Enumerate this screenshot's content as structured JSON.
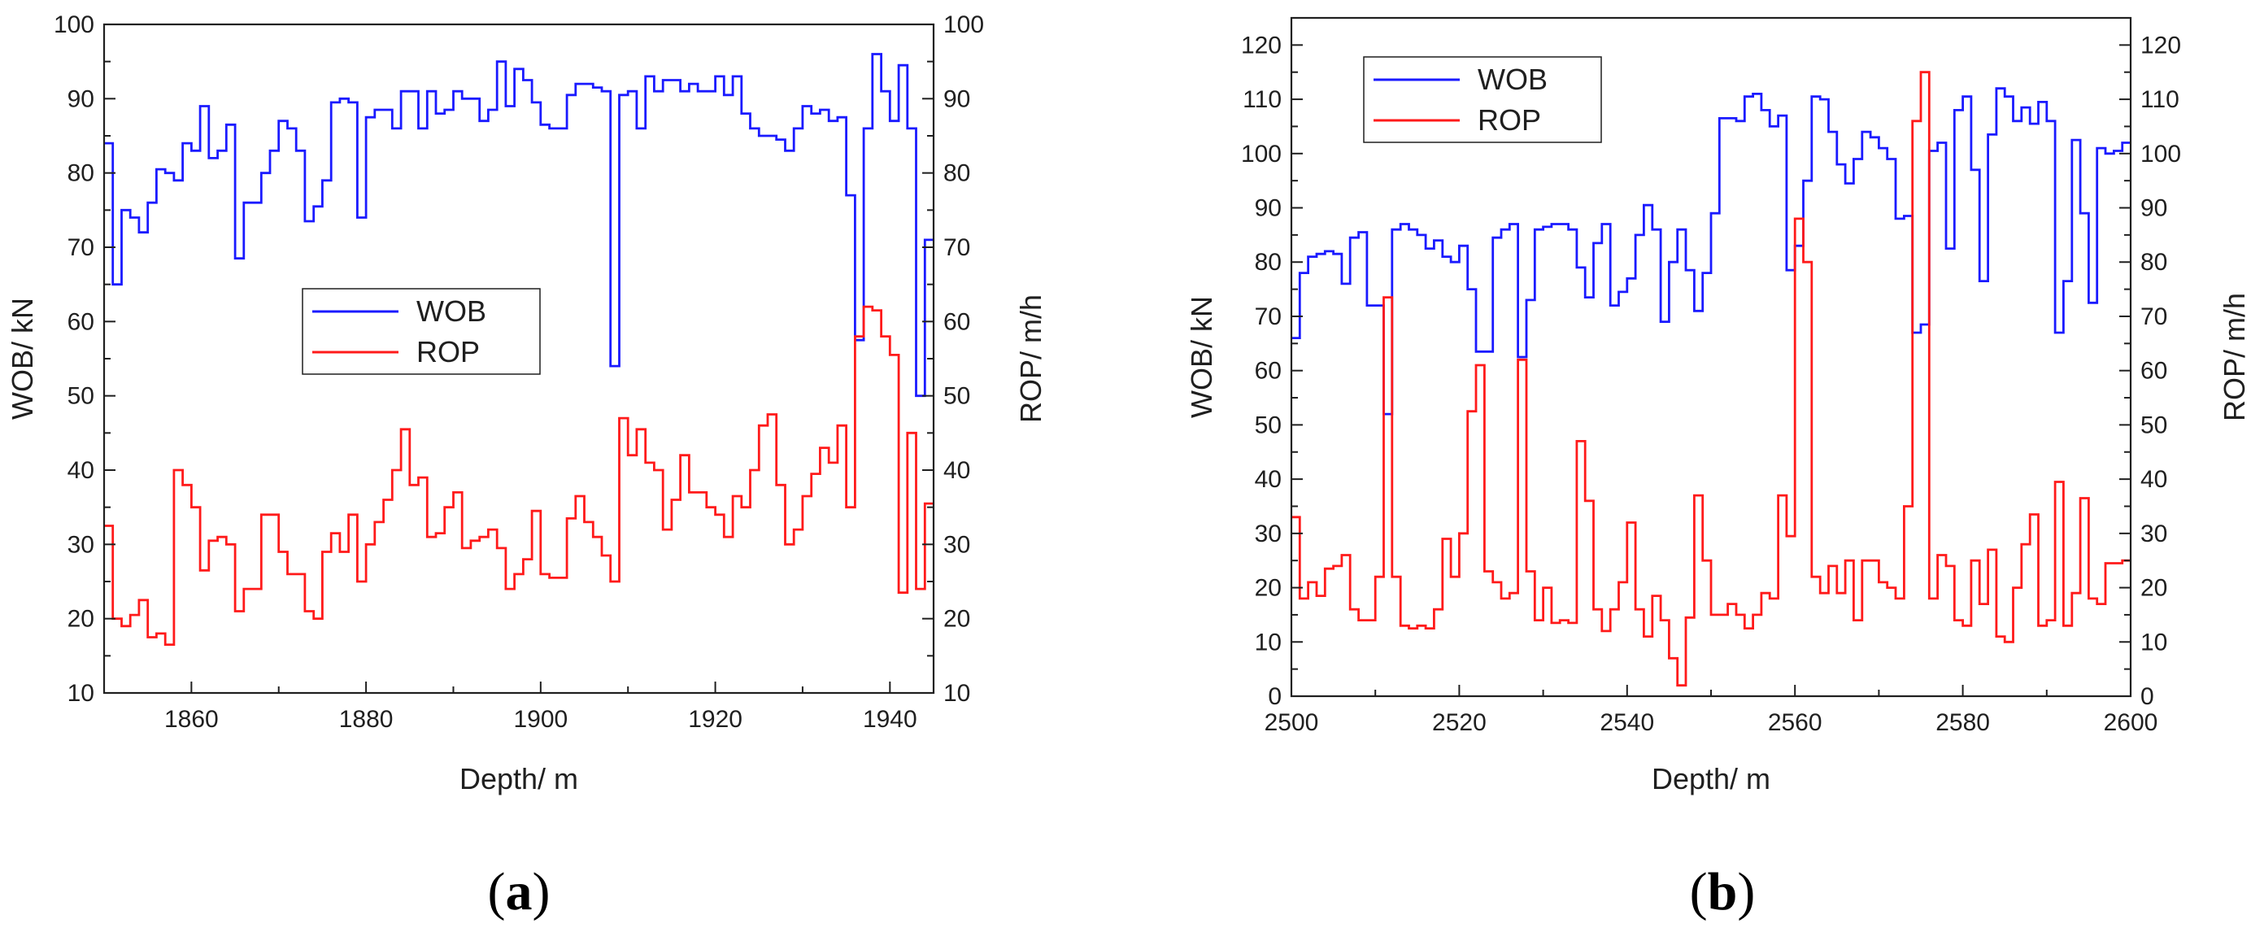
{
  "colors": {
    "wob": "#1a1aff",
    "rop": "#ff1a1a",
    "axis": "#1f1f1f"
  },
  "chart_data": [
    {
      "type": "line",
      "step": true,
      "panel_label_open": "(",
      "panel_label": "a",
      "panel_label_close": ")",
      "xlabel": "Depth/ m",
      "ylabel": "WOB/ kN",
      "y2label": "ROP/ m/h",
      "xlim": [
        1850,
        1945
      ],
      "ylim": [
        10,
        100
      ],
      "y2lim": [
        10,
        100
      ],
      "xticks": [
        1860,
        1880,
        1900,
        1920,
        1940
      ],
      "yticks": [
        10,
        20,
        30,
        40,
        50,
        60,
        70,
        80,
        90,
        100
      ],
      "legend_position": "center-left",
      "series": [
        {
          "name": "WOB",
          "axis": "left",
          "x": [
            1850,
            1851,
            1852,
            1853,
            1854,
            1855,
            1856,
            1857,
            1858,
            1859,
            1860,
            1861,
            1862,
            1863,
            1864,
            1865,
            1866,
            1867,
            1868,
            1869,
            1870,
            1871,
            1872,
            1873,
            1874,
            1875,
            1876,
            1877,
            1878,
            1879,
            1880,
            1881,
            1882,
            1883,
            1884,
            1885,
            1886,
            1887,
            1888,
            1889,
            1890,
            1891,
            1892,
            1893,
            1894,
            1895,
            1896,
            1897,
            1898,
            1899,
            1900,
            1901,
            1902,
            1903,
            1904,
            1905,
            1906,
            1907,
            1908,
            1909,
            1910,
            1911,
            1912,
            1913,
            1914,
            1915,
            1916,
            1917,
            1918,
            1919,
            1920,
            1921,
            1922,
            1923,
            1924,
            1925,
            1926,
            1927,
            1928,
            1929,
            1930,
            1931,
            1932,
            1933,
            1934,
            1935,
            1936,
            1937,
            1938,
            1939,
            1940,
            1941,
            1942,
            1943,
            1944,
            1945
          ],
          "y": [
            84,
            65,
            75,
            74,
            72,
            76,
            80.5,
            80,
            79,
            84,
            83,
            89,
            82,
            83,
            86.5,
            68.5,
            76,
            76,
            80,
            83,
            87,
            86,
            83,
            73.5,
            75.5,
            79,
            89.5,
            90,
            89.5,
            74,
            87.5,
            88.5,
            88.5,
            86,
            91,
            91,
            86,
            91,
            88,
            88.5,
            91,
            90,
            90,
            87,
            88.5,
            95,
            89,
            94,
            92.5,
            89.5,
            86.5,
            86,
            86,
            90.5,
            92,
            92,
            91.5,
            91,
            54,
            90.5,
            91,
            86,
            93,
            91,
            92.5,
            92.5,
            91,
            92,
            91,
            91,
            93,
            90.5,
            93,
            88,
            86,
            85,
            85,
            84.5,
            83,
            86,
            89,
            88,
            88.5,
            87,
            87.5,
            77,
            57.5,
            86,
            96,
            91,
            87,
            94.5,
            86,
            50,
            71,
            71
          ]
        },
        {
          "name": "ROP",
          "axis": "right",
          "x": [
            1850,
            1851,
            1852,
            1853,
            1854,
            1855,
            1856,
            1857,
            1858,
            1859,
            1860,
            1861,
            1862,
            1863,
            1864,
            1865,
            1866,
            1867,
            1868,
            1869,
            1870,
            1871,
            1872,
            1873,
            1874,
            1875,
            1876,
            1877,
            1878,
            1879,
            1880,
            1881,
            1882,
            1883,
            1884,
            1885,
            1886,
            1887,
            1888,
            1889,
            1890,
            1891,
            1892,
            1893,
            1894,
            1895,
            1896,
            1897,
            1898,
            1899,
            1900,
            1901,
            1902,
            1903,
            1904,
            1905,
            1906,
            1907,
            1908,
            1909,
            1910,
            1911,
            1912,
            1913,
            1914,
            1915,
            1916,
            1917,
            1918,
            1919,
            1920,
            1921,
            1922,
            1923,
            1924,
            1925,
            1926,
            1927,
            1928,
            1929,
            1930,
            1931,
            1932,
            1933,
            1934,
            1935,
            1936,
            1937,
            1938,
            1939,
            1940,
            1941,
            1942,
            1943,
            1944,
            1945
          ],
          "y": [
            32.5,
            20,
            19,
            20.5,
            22.5,
            17.5,
            18,
            16.5,
            40,
            38,
            35,
            26.5,
            30.5,
            31,
            30,
            21,
            24,
            24,
            34,
            34,
            29,
            26,
            26,
            21,
            20,
            29,
            31.5,
            29,
            34,
            25,
            30,
            33,
            36,
            40,
            45.5,
            38,
            39,
            31,
            31.5,
            35,
            37,
            29.5,
            30.5,
            31,
            32,
            29.5,
            24,
            26,
            28,
            34.5,
            26,
            25.5,
            25.5,
            33.5,
            36.5,
            33,
            31,
            28.5,
            25,
            47,
            42,
            45.5,
            41,
            40,
            32,
            36,
            42,
            37,
            37,
            35,
            34,
            31,
            36.5,
            35,
            40,
            46,
            47.5,
            38,
            30,
            32,
            36.5,
            39.5,
            43,
            41,
            46,
            35,
            58,
            62,
            61.5,
            58,
            55.5,
            23.5,
            45,
            24,
            35.5,
            35.5
          ]
        }
      ]
    },
    {
      "type": "line",
      "step": true,
      "panel_label_open": "(",
      "panel_label": "b",
      "panel_label_close": ")",
      "xlabel": "Depth/ m",
      "ylabel": "WOB/ kN",
      "y2label": "ROP/ m/h",
      "xlim": [
        2500,
        2600
      ],
      "ylim": [
        0,
        125
      ],
      "y2lim": [
        0,
        125
      ],
      "xticks": [
        2500,
        2520,
        2540,
        2560,
        2580,
        2600
      ],
      "yticks": [
        0,
        10,
        20,
        30,
        40,
        50,
        60,
        70,
        80,
        90,
        100,
        110,
        120
      ],
      "legend_position": "top-left",
      "series": [
        {
          "name": "WOB",
          "axis": "left",
          "x": [
            2500,
            2501,
            2502,
            2503,
            2504,
            2505,
            2506,
            2507,
            2508,
            2509,
            2510,
            2511,
            2512,
            2513,
            2514,
            2515,
            2516,
            2517,
            2518,
            2519,
            2520,
            2521,
            2522,
            2523,
            2524,
            2525,
            2526,
            2527,
            2528,
            2529,
            2530,
            2531,
            2532,
            2533,
            2534,
            2535,
            2536,
            2537,
            2538,
            2539,
            2540,
            2541,
            2542,
            2543,
            2544,
            2545,
            2546,
            2547,
            2548,
            2549,
            2550,
            2551,
            2552,
            2553,
            2554,
            2555,
            2556,
            2557,
            2558,
            2559,
            2560,
            2561,
            2562,
            2563,
            2564,
            2565,
            2566,
            2567,
            2568,
            2569,
            2570,
            2571,
            2572,
            2573,
            2574,
            2575,
            2576,
            2577,
            2578,
            2579,
            2580,
            2581,
            2582,
            2583,
            2584,
            2585,
            2586,
            2587,
            2588,
            2589,
            2590,
            2591,
            2592,
            2593,
            2594,
            2595,
            2596,
            2597,
            2598,
            2599,
            2600
          ],
          "y": [
            66,
            78,
            81,
            81.5,
            82,
            81.5,
            76,
            84.5,
            85.5,
            72,
            72,
            52,
            86,
            87,
            86,
            85,
            82.5,
            84,
            81,
            80,
            83,
            75,
            63.5,
            63.5,
            84.5,
            86,
            87,
            62.5,
            73,
            86,
            86.5,
            87,
            87,
            86,
            79,
            73.5,
            83.5,
            87,
            72,
            74.5,
            77,
            85,
            90.5,
            86,
            69,
            80,
            86,
            78.5,
            71,
            78,
            89,
            106.5,
            106.5,
            106,
            110.5,
            111,
            108,
            105,
            107,
            78.5,
            83,
            95,
            110.5,
            110,
            104,
            98,
            94.5,
            99,
            104,
            103,
            101,
            99,
            88,
            88.5,
            67,
            68.5,
            100.5,
            102,
            82.5,
            108,
            110.5,
            97,
            76.5,
            103.5,
            112,
            110.5,
            106,
            108.5,
            105.5,
            109.5,
            106,
            67,
            76.5,
            102.5,
            89,
            72.5,
            101,
            100,
            100.5,
            102,
            102
          ]
        },
        {
          "name": "ROP",
          "axis": "right",
          "x": [
            2500,
            2501,
            2502,
            2503,
            2504,
            2505,
            2506,
            2507,
            2508,
            2509,
            2510,
            2511,
            2512,
            2513,
            2514,
            2515,
            2516,
            2517,
            2518,
            2519,
            2520,
            2521,
            2522,
            2523,
            2524,
            2525,
            2526,
            2527,
            2528,
            2529,
            2530,
            2531,
            2532,
            2533,
            2534,
            2535,
            2536,
            2537,
            2538,
            2539,
            2540,
            2541,
            2542,
            2543,
            2544,
            2545,
            2546,
            2547,
            2548,
            2549,
            2550,
            2551,
            2552,
            2553,
            2554,
            2555,
            2556,
            2557,
            2558,
            2559,
            2560,
            2561,
            2562,
            2563,
            2564,
            2565,
            2566,
            2567,
            2568,
            2569,
            2570,
            2571,
            2572,
            2573,
            2574,
            2575,
            2576,
            2577,
            2578,
            2579,
            2580,
            2581,
            2582,
            2583,
            2584,
            2585,
            2586,
            2587,
            2588,
            2589,
            2590,
            2591,
            2592,
            2593,
            2594,
            2595,
            2596,
            2597,
            2598,
            2599,
            2600
          ],
          "y": [
            33,
            18,
            21,
            18.5,
            23.5,
            24,
            26,
            16,
            14,
            14,
            22,
            73.5,
            22,
            13,
            12.5,
            13,
            12.5,
            16,
            29,
            22,
            30,
            52.5,
            61,
            23,
            21,
            18,
            19,
            62,
            23,
            14,
            20,
            13.5,
            14,
            13.5,
            47,
            36,
            16,
            12,
            16,
            21,
            32,
            16,
            11,
            18.5,
            14,
            7,
            2,
            14.5,
            37,
            25,
            15,
            15,
            17,
            15,
            12.5,
            15,
            19,
            18,
            37,
            29.5,
            88,
            80,
            22,
            19,
            24,
            19,
            25,
            14,
            25,
            25,
            21,
            20,
            18,
            35,
            106,
            115,
            18,
            26,
            24,
            14,
            13,
            25,
            17,
            27,
            11,
            10,
            20,
            28,
            33.5,
            13,
            14,
            39.5,
            13,
            19,
            36.5,
            18,
            17,
            24.5,
            24.5,
            25,
            25
          ]
        }
      ]
    }
  ]
}
